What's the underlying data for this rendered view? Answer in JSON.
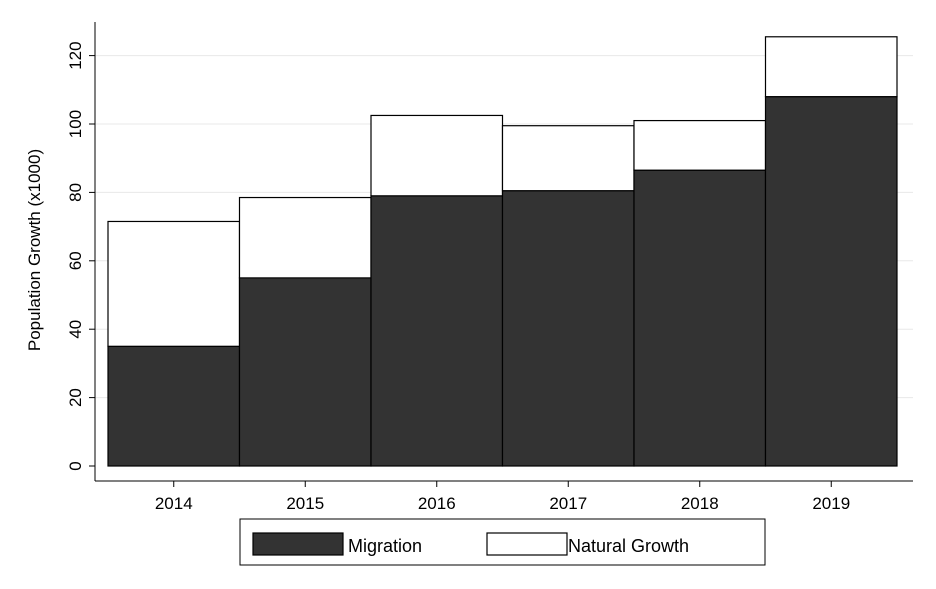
{
  "chart_data": {
    "type": "bar",
    "stacked": true,
    "categories": [
      "2014",
      "2015",
      "2016",
      "2017",
      "2018",
      "2019"
    ],
    "series": [
      {
        "name": "Migration",
        "values": [
          35,
          55,
          79,
          80.5,
          86.5,
          108
        ],
        "color": "#333333"
      },
      {
        "name": "Natural Growth",
        "values": [
          36.5,
          23.5,
          23.5,
          19,
          14.5,
          17.5
        ],
        "color": "#ffffff"
      }
    ],
    "title": "",
    "xlabel": "",
    "ylabel": "Population Growth (x1000)",
    "ylim": [
      0,
      130
    ],
    "yticks": [
      0,
      20,
      40,
      60,
      80,
      100,
      120
    ],
    "grid": true,
    "legend_position": "bottom"
  }
}
